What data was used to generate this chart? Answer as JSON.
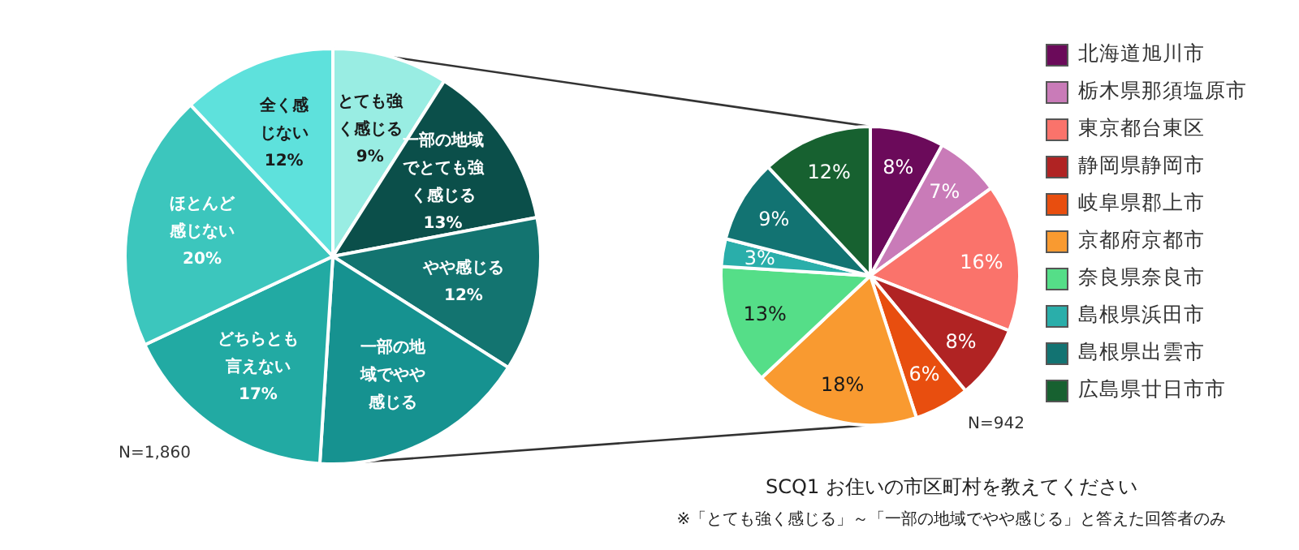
{
  "chart_data": [
    {
      "type": "pie",
      "categories": [
        "とても強く感じる",
        "一部の地域でとても強く感じる",
        "やや感じる",
        "一部の地域でやや感じる",
        "どちらとも言えない",
        "ほとんど感じない",
        "全く感じない"
      ],
      "values": [
        9,
        13,
        12,
        17,
        17,
        20,
        12
      ],
      "value_labels": [
        "9%",
        "13%",
        "12%",
        null,
        "17%",
        "20%",
        "12%"
      ],
      "colors": [
        "#99ede3",
        "#0b4f4a",
        "#137470",
        "#169290",
        "#22aaa3",
        "#3cc6bd",
        "#5ee1dc"
      ],
      "legend": false,
      "annotations": [
        "N=1,860"
      ]
    },
    {
      "type": "pie",
      "categories": [
        "北海道旭川市",
        "栃木県那須塩原市",
        "東京都台東区",
        "静岡県静岡市",
        "岐阜県郡上市",
        "京都府京都市",
        "奈良県奈良市",
        "島根県浜田市",
        "島根県出雲市",
        "広島県廿日市市"
      ],
      "values": [
        8,
        7,
        16,
        8,
        6,
        18,
        13,
        3,
        9,
        12
      ],
      "value_labels": [
        "8%",
        "7%",
        "16%",
        "8%",
        "6%",
        "18%",
        "13%",
        "3%",
        "9%",
        "12%"
      ],
      "colors": [
        "#6b0a5a",
        "#c97bb8",
        "#fa736b",
        "#b02323",
        "#e84e0f",
        "#f99a30",
        "#55de88",
        "#2aaeaa",
        "#127372",
        "#176130"
      ],
      "legend": "right",
      "annotations": [
        "N=942",
        "SCQ1 お住いの市区町村を教えてください",
        "※「とても強く感じる」～「一部の地域でやや感じる」と答えた回答者のみ"
      ]
    }
  ]
}
